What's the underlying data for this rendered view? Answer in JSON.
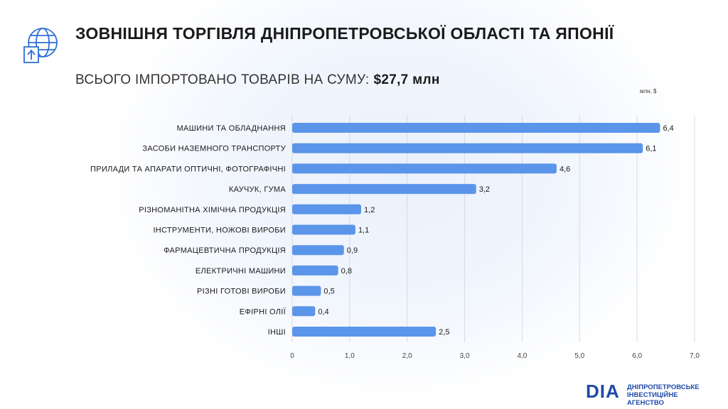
{
  "header": {
    "title": "ЗОВНІШНЯ ТОРГІВЛЯ ДНІПРОПЕТРОВСЬКОЇ ОБЛАСТІ ТА ЯПОНІЇ",
    "subtitle_label": "ВСЬОГО ІМПОРТОВАНО ТОВАРІВ НА СУМУ:",
    "subtitle_amount": "$27,7 млн",
    "icon": "globe-export-icon"
  },
  "unit_label": "млн, $",
  "colors": {
    "bar": "#5b95ea",
    "title": "#1a1a1a",
    "brand": "#1f4aa8",
    "grid": "#d6dbe3"
  },
  "chart_data": {
    "type": "bar",
    "orientation": "horizontal",
    "categories": [
      "МАШИНИ ТА ОБЛАДНАННЯ",
      "ЗАСОБИ НАЗЕМНОГО ТРАНСПОРТУ",
      "ПРИЛАДИ ТА АПАРАТИ ОПТИЧНІ, ФОТОГРАФІЧНІ",
      "КАУЧУК, ГУМА",
      "РІЗНОМАНІТНА ХІМІЧНА ПРОДУКЦІЯ",
      "ІНСТРУМЕНТИ, НОЖОВІ ВИРОБИ",
      "ФАРМАЦЕВТИЧНА ПРОДУКЦІЯ",
      "ЕЛЕКТРИЧНІ МАШИНИ",
      "РІЗНІ ГОТОВІ ВИРОБИ",
      "ЕФІРНІ ОЛІЇ",
      "ІНШІ"
    ],
    "values": [
      6.4,
      6.1,
      4.6,
      3.2,
      1.2,
      1.1,
      0.9,
      0.8,
      0.5,
      0.4,
      2.5
    ],
    "value_labels": [
      "6,4",
      "6,1",
      "4,6",
      "3,2",
      "1,2",
      "1,1",
      "0,9",
      "0,8",
      "0,5",
      "0,4",
      "2,5"
    ],
    "xlim": [
      0,
      7
    ],
    "xticks": [
      0,
      1,
      2,
      3,
      4,
      5,
      6,
      7
    ],
    "xtick_labels": [
      "0",
      "1,0",
      "2,0",
      "3,0",
      "4,0",
      "5,0",
      "6,0",
      "7,0"
    ],
    "grid": true
  },
  "logo": {
    "mark": "DIA",
    "line1": "ДНІПРОПЕТРОВСЬКЕ",
    "line2": "ІНВЕСТИЦІЙНЕ АГЕНСТВО"
  }
}
